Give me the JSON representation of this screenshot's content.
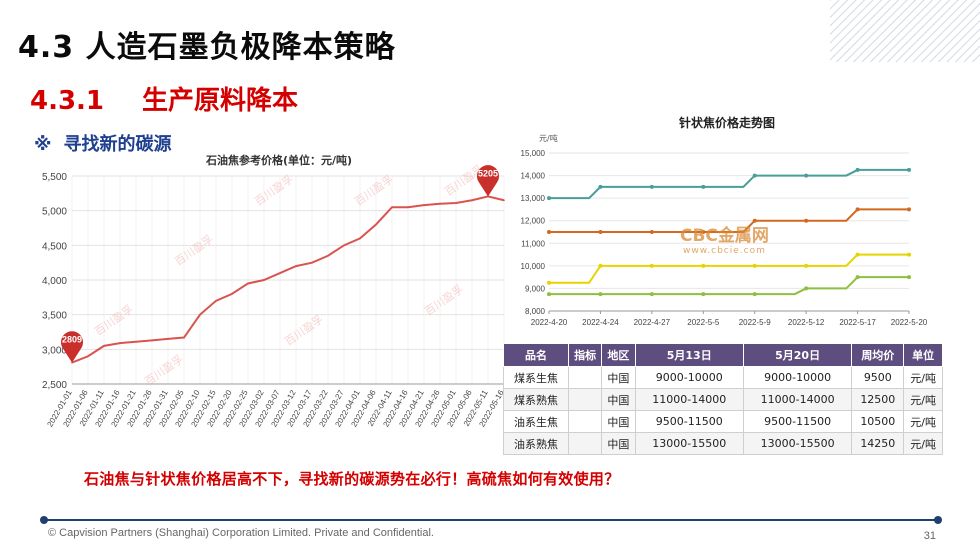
{
  "slide": {
    "title": "4.3 人造石墨负极降本策略",
    "subtitle_num": "4.3.1",
    "subtitle_text": "生产原料降本",
    "bullet_mark": "※",
    "bullet_text": "寻找新的碳源",
    "conclusion": "石油焦与针状焦价格居高不下，寻找新的碳源势在必行！高硫焦如何有效使用？",
    "footer": "© Capvision Partners (Shanghai) Corporation Limited. Private and Confidential.",
    "page_number": "31",
    "watermark": "百川盈孚",
    "cbc_logo": "CBC金属网",
    "cbc_url": "www.cbcie.com"
  },
  "chart_data": [
    {
      "type": "line",
      "title": "石油焦参考价格(单位：元/吨)",
      "ylim": [
        2500,
        5500
      ],
      "yticks": [
        "2,500",
        "3,000",
        "3,500",
        "4,000",
        "4,500",
        "5,000",
        "5,500"
      ],
      "ytick_values": [
        2500,
        3000,
        3500,
        4000,
        4500,
        5000,
        5500
      ],
      "categories": [
        "2022-01-01",
        "2022-01-06",
        "2022-01-11",
        "2022-01-16",
        "2022-01-21",
        "2022-01-26",
        "2022-01-31",
        "2022-02-05",
        "2022-02-10",
        "2022-02-15",
        "2022-02-20",
        "2022-02-25",
        "2022-03-02",
        "2022-03-07",
        "2022-03-12",
        "2022-03-17",
        "2022-03-22",
        "2022-03-27",
        "2022-04-01",
        "2022-04-06",
        "2022-04-11",
        "2022-04-16",
        "2022-04-21",
        "2022-04-26",
        "2022-05-01",
        "2022-05-06",
        "2022-05-11",
        "2022-05-16"
      ],
      "values": [
        2809,
        2900,
        3050,
        3090,
        3110,
        3130,
        3150,
        3170,
        3500,
        3700,
        3800,
        3950,
        4000,
        4100,
        4200,
        4250,
        4350,
        4500,
        4600,
        4800,
        5050,
        5050,
        5080,
        5100,
        5110,
        5150,
        5205,
        5150
      ],
      "annotations": [
        {
          "label": "2809",
          "value": 2809
        },
        {
          "label": "5205",
          "value": 5205
        }
      ],
      "grid": true,
      "color": "#d9534f"
    },
    {
      "type": "line",
      "title": "针状焦价格走势图",
      "ylabel": "元/吨",
      "ylim": [
        8000,
        15000
      ],
      "yticks": [
        "8,000",
        "9,000",
        "10,000",
        "11,000",
        "12,000",
        "13,000",
        "14,000",
        "15,000"
      ],
      "ytick_values": [
        8000,
        9000,
        10000,
        11000,
        12000,
        13000,
        14000,
        15000
      ],
      "categories": [
        "2022-4-20",
        "2022-4-24",
        "2022-4-27",
        "2022-5-5",
        "2022-5-9",
        "2022-5-12",
        "2022-5-17",
        "2022-5-20"
      ],
      "series": [
        {
          "values": [
            13000,
            13500,
            13500,
            13500,
            14000,
            14000,
            14250,
            14250
          ],
          "color": "#4a9e98"
        },
        {
          "values": [
            11500,
            11500,
            11500,
            11500,
            12000,
            12000,
            12500,
            12500
          ],
          "color": "#d2691e"
        },
        {
          "values": [
            9250,
            10000,
            10000,
            10000,
            10000,
            10000,
            10500,
            10500
          ],
          "color": "#e6d400"
        },
        {
          "values": [
            8750,
            8750,
            8750,
            8750,
            8750,
            9000,
            9500,
            9500
          ],
          "color": "#8fbf3f"
        }
      ],
      "grid": true
    }
  ],
  "table": {
    "headers": [
      "品名",
      "指标",
      "地区",
      "5月13日",
      "5月20日",
      "周均价",
      "单位"
    ],
    "rows": [
      [
        "煤系生焦",
        "",
        "中国",
        "9000-10000",
        "9000-10000",
        "9500",
        "元/吨"
      ],
      [
        "煤系熟焦",
        "",
        "中国",
        "11000-14000",
        "11000-14000",
        "12500",
        "元/吨"
      ],
      [
        "油系生焦",
        "",
        "中国",
        "9500-11500",
        "9500-11500",
        "10500",
        "元/吨"
      ],
      [
        "油系熟焦",
        "",
        "中国",
        "13000-15500",
        "13000-15500",
        "14250",
        "元/吨"
      ]
    ]
  }
}
